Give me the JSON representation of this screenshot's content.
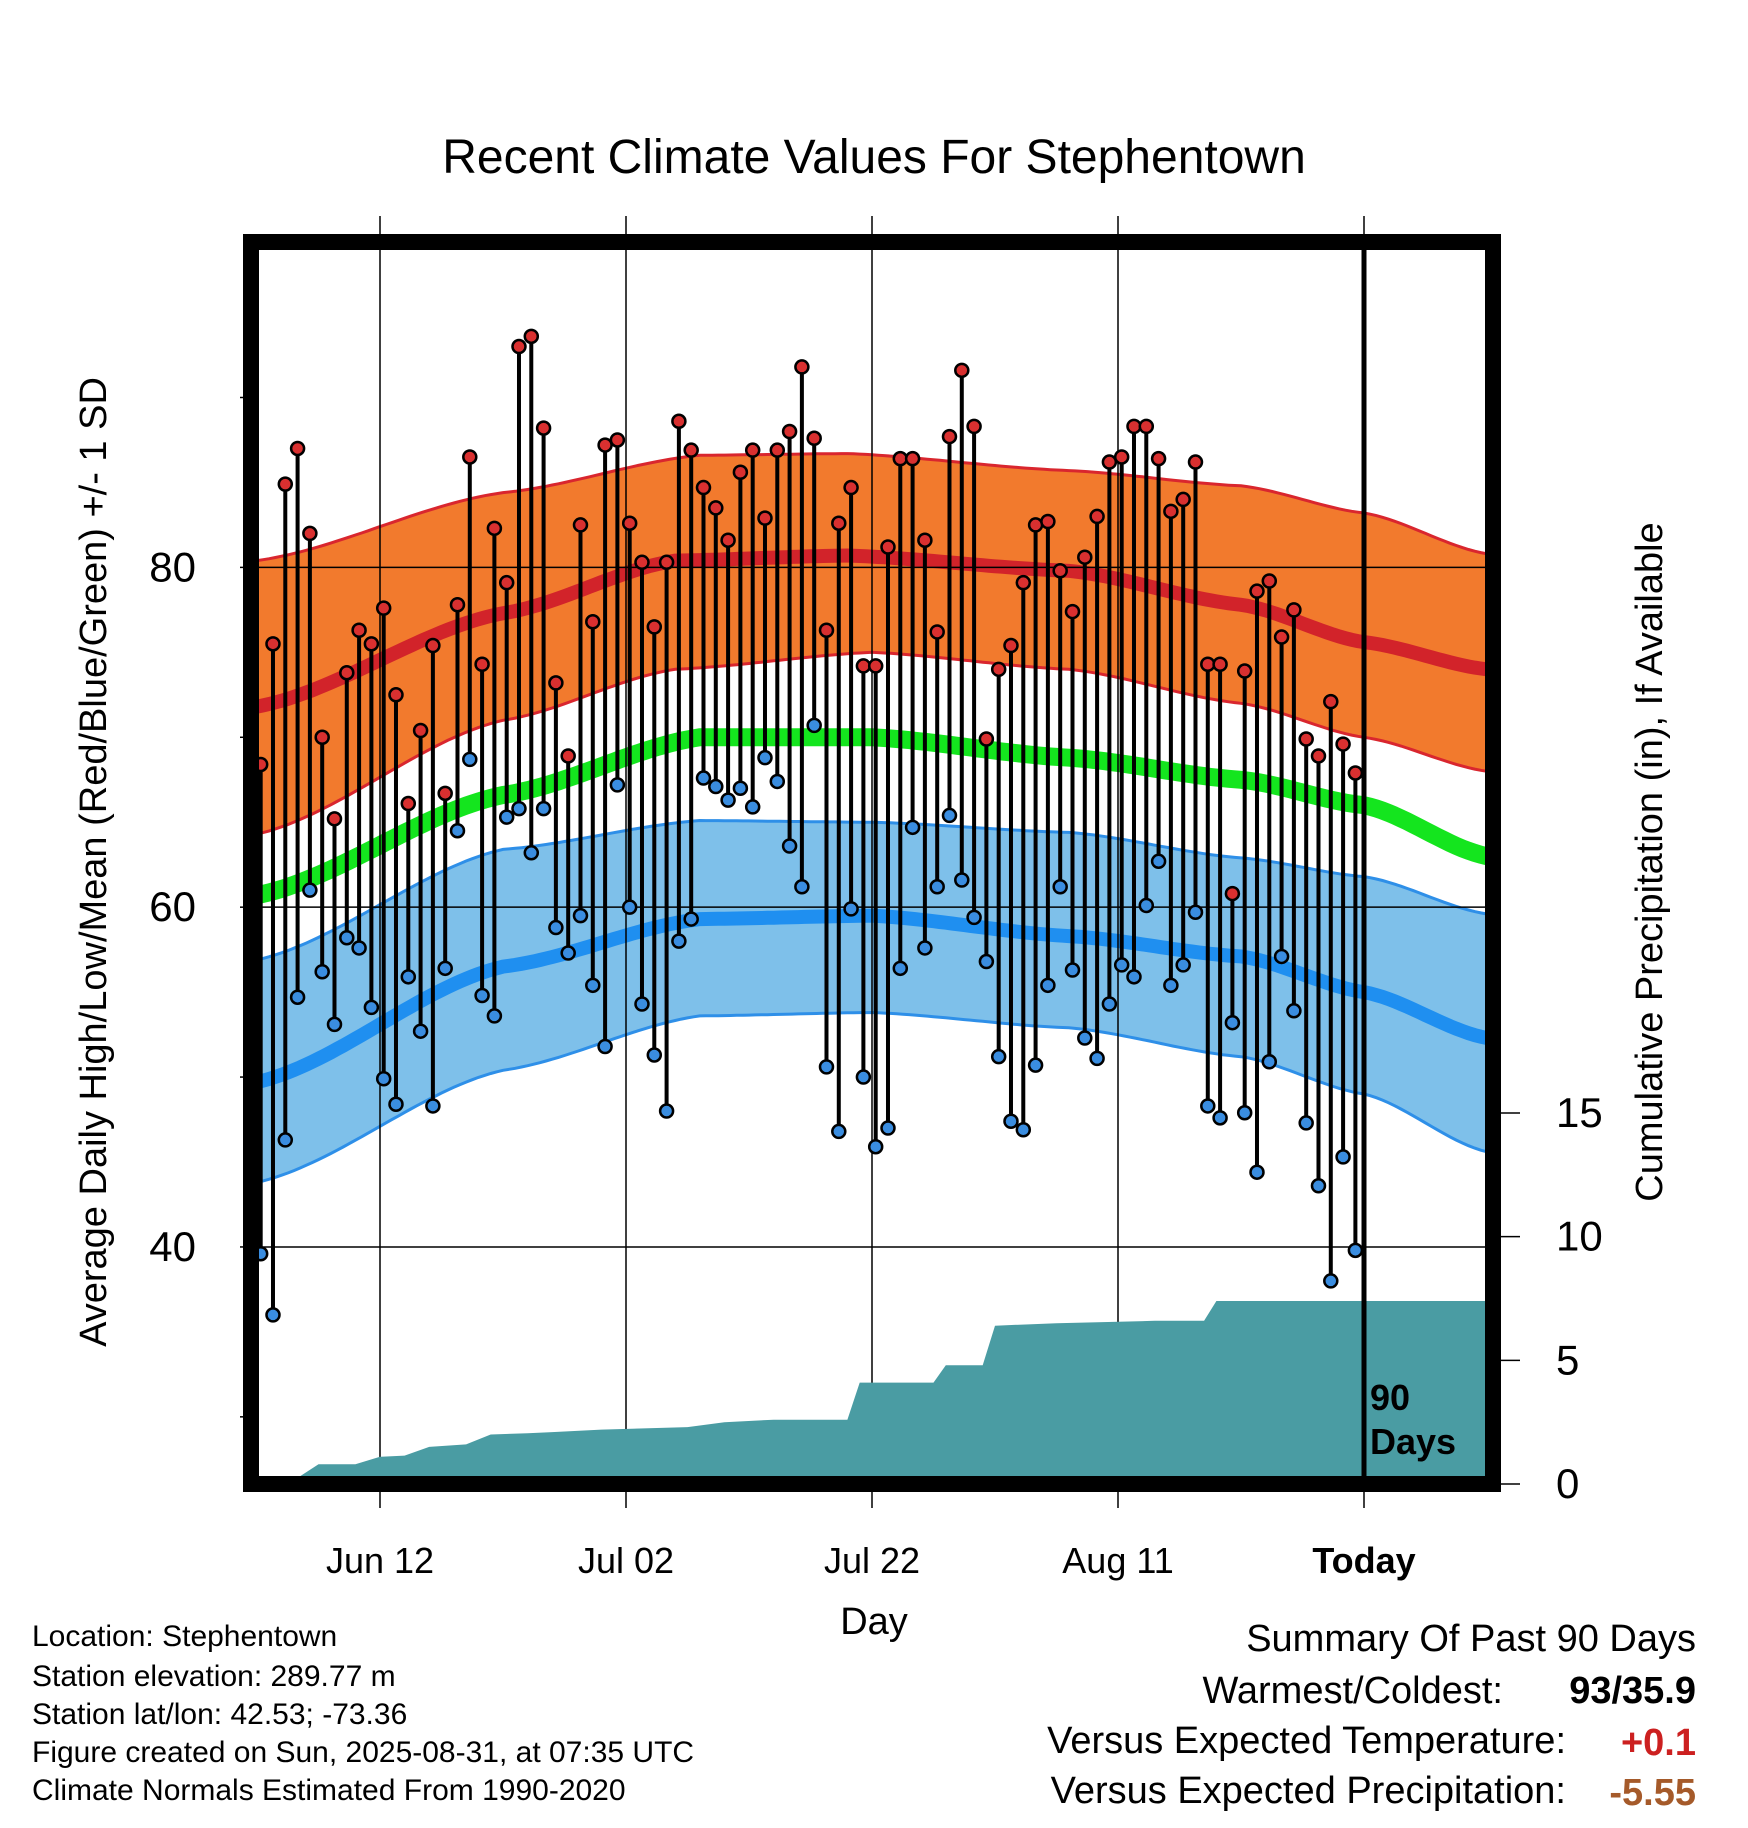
{
  "title": "Recent Climate Values For Stephentown",
  "chart_data": {
    "type": "scatter",
    "title": "Recent Climate Values For Stephentown",
    "xlabel": "Day",
    "ylabel_left": "Average Daily High/Low/Mean (Red/Blue/Green) +/- 1 SD",
    "ylabel_right": "Cumulative Precipitation (in), If Available",
    "x_ticks": [
      {
        "day": 10,
        "label": "Jun 12"
      },
      {
        "day": 30,
        "label": "Jul 02"
      },
      {
        "day": 50,
        "label": "Jul 22"
      },
      {
        "day": 70,
        "label": "Aug 11"
      },
      {
        "day": 90,
        "label": "Today"
      }
    ],
    "y_left_ticks": [
      40,
      60,
      80
    ],
    "y_left_minor_ticks": [
      30,
      50,
      70,
      90
    ],
    "y_right_ticks": [
      0,
      5,
      10,
      15
    ],
    "x_range": [
      0,
      100
    ],
    "y_left_range": [
      26.4,
      98.8
    ],
    "y_right_range": [
      0,
      15
    ],
    "today_marker": {
      "day": 90,
      "label_line1": "90",
      "label_line2": "Days"
    },
    "normals": {
      "high_mean": [
        [
          0,
          71.8
        ],
        [
          20,
          77.3
        ],
        [
          34,
          80.4
        ],
        [
          48,
          80.7
        ],
        [
          66,
          79.8
        ],
        [
          80,
          77.8
        ],
        [
          90,
          75.6
        ],
        [
          100,
          74.0
        ]
      ],
      "high_upper": [
        [
          0,
          80.4
        ],
        [
          20,
          84.4
        ],
        [
          36,
          86.6
        ],
        [
          48,
          86.7
        ],
        [
          66,
          85.7
        ],
        [
          80,
          84.8
        ],
        [
          90,
          83.2
        ],
        [
          100,
          80.8
        ]
      ],
      "high_lower": [
        [
          0,
          64.3
        ],
        [
          20,
          71.0
        ],
        [
          34,
          74.0
        ],
        [
          50,
          75.0
        ],
        [
          66,
          74.0
        ],
        [
          80,
          72.0
        ],
        [
          90,
          70.0
        ],
        [
          100,
          68.0
        ]
      ],
      "mean": [
        [
          0,
          60.7
        ],
        [
          20,
          66.6
        ],
        [
          36,
          70.0
        ],
        [
          50,
          70.0
        ],
        [
          66,
          68.8
        ],
        [
          80,
          67.5
        ],
        [
          90,
          66.0
        ],
        [
          100,
          63.0
        ]
      ],
      "low_mean": [
        [
          0,
          49.7
        ],
        [
          20,
          56.5
        ],
        [
          36,
          59.3
        ],
        [
          50,
          59.5
        ],
        [
          66,
          58.3
        ],
        [
          80,
          57.1
        ],
        [
          90,
          55.0
        ],
        [
          100,
          52.3
        ]
      ],
      "low_upper": [
        [
          0,
          56.9
        ],
        [
          20,
          63.4
        ],
        [
          36,
          65.1
        ],
        [
          50,
          65.0
        ],
        [
          66,
          64.4
        ],
        [
          80,
          62.9
        ],
        [
          90,
          61.8
        ],
        [
          100,
          59.6
        ]
      ],
      "low_lower": [
        [
          0,
          43.8
        ],
        [
          20,
          50.4
        ],
        [
          36,
          53.6
        ],
        [
          50,
          53.8
        ],
        [
          66,
          52.9
        ],
        [
          80,
          51.2
        ],
        [
          90,
          49.0
        ],
        [
          100,
          45.6
        ]
      ]
    },
    "daily_highs": [
      68.4,
      75.5,
      84.9,
      87.0,
      82.0,
      70.0,
      65.2,
      73.8,
      76.3,
      75.5,
      77.6,
      72.5,
      66.1,
      70.4,
      75.4,
      66.7,
      77.8,
      86.5,
      74.3,
      82.3,
      79.1,
      93.0,
      93.6,
      88.2,
      73.2,
      68.9,
      82.5,
      76.8,
      87.2,
      87.5,
      82.6,
      80.3,
      76.5,
      80.3,
      88.6,
      86.9,
      84.7,
      83.5,
      81.6,
      85.6,
      86.9,
      82.9,
      86.9,
      88.0,
      91.8,
      87.6,
      76.3,
      82.6,
      84.7,
      74.2,
      74.2,
      81.2,
      86.4,
      86.4,
      81.6,
      76.2,
      87.7,
      91.6,
      88.3,
      69.9,
      74.0,
      75.4,
      79.1,
      82.5,
      82.7,
      79.8,
      77.4,
      80.6,
      83.0,
      86.2,
      86.5,
      88.3,
      88.3,
      86.4,
      83.3,
      84.0,
      86.2,
      74.3,
      74.3,
      60.8,
      73.9,
      78.6,
      79.2,
      75.9,
      77.5,
      69.9,
      68.9,
      72.1,
      69.6,
      67.9
    ],
    "daily_lows": [
      39.6,
      36.0,
      46.3,
      54.7,
      61.0,
      56.2,
      53.1,
      58.2,
      57.6,
      54.1,
      49.9,
      48.4,
      55.9,
      52.7,
      48.3,
      56.4,
      64.5,
      68.7,
      54.8,
      53.6,
      65.3,
      65.8,
      63.2,
      65.8,
      58.8,
      57.3,
      59.5,
      55.4,
      51.8,
      67.2,
      60.0,
      54.3,
      51.3,
      48.0,
      58.0,
      59.3,
      67.6,
      67.1,
      66.3,
      67.0,
      65.9,
      68.8,
      67.4,
      63.6,
      61.2,
      70.7,
      50.6,
      46.8,
      59.9,
      50.0,
      45.9,
      47.0,
      56.4,
      64.7,
      57.6,
      61.2,
      65.4,
      61.6,
      59.4,
      56.8,
      51.2,
      47.4,
      46.9,
      50.7,
      55.4,
      61.2,
      56.3,
      52.3,
      51.1,
      54.3,
      56.6,
      55.9,
      60.1,
      62.7,
      55.4,
      56.6,
      59.7,
      48.3,
      47.6,
      53.2,
      47.9,
      44.4,
      50.9,
      57.1,
      53.9,
      47.3,
      43.6,
      38.0,
      45.3,
      39.8
    ],
    "precip_cumulative": [
      [
        0,
        0
      ],
      [
        3,
        0.15
      ],
      [
        5,
        0.8
      ],
      [
        8,
        0.8
      ],
      [
        10,
        1.1
      ],
      [
        12,
        1.15
      ],
      [
        14,
        1.5
      ],
      [
        17,
        1.6
      ],
      [
        19,
        2.0
      ],
      [
        22,
        2.05
      ],
      [
        24,
        2.1
      ],
      [
        28,
        2.2
      ],
      [
        35,
        2.3
      ],
      [
        38,
        2.5
      ],
      [
        42,
        2.6
      ],
      [
        48,
        2.6
      ],
      [
        49,
        4.1
      ],
      [
        55,
        4.1
      ],
      [
        56,
        4.8
      ],
      [
        59,
        4.8
      ],
      [
        60,
        6.4
      ],
      [
        65,
        6.5
      ],
      [
        73,
        6.6
      ],
      [
        77,
        6.6
      ],
      [
        78,
        7.4
      ],
      [
        100,
        7.4
      ]
    ]
  },
  "colors": {
    "high_band": "#f27a2d",
    "high_band_edge": "#d9262e",
    "high_mean": "#d2232a",
    "mean": "#14e51e",
    "low_band": "#7ec0ea",
    "low_band_edge": "#2e8fe8",
    "low_mean": "#1f8ff0",
    "precip": "#4a9ca3",
    "high_dot": "#d93030",
    "low_dot": "#3a8de0",
    "warm_value": "#cc2020",
    "precip_value": "#a55a2a"
  },
  "info": {
    "location": "Location: Stephentown",
    "elevation": "Station elevation: 289.77 m",
    "latlon": "Station lat/lon: 42.53; -73.36",
    "created": "Figure created on Sun, 2025-08-31, at 07:35 UTC",
    "normals": "Climate Normals Estimated From 1990-2020"
  },
  "summary": {
    "heading": "Summary Of Past 90 Days",
    "warm_cold_label": "Warmest/Coldest:",
    "warm_cold_value": "93/35.9",
    "temp_label": "Versus Expected Temperature:",
    "temp_value": "+0.1",
    "precip_label": "Versus Expected Precipitation:",
    "precip_value": "-5.55"
  }
}
